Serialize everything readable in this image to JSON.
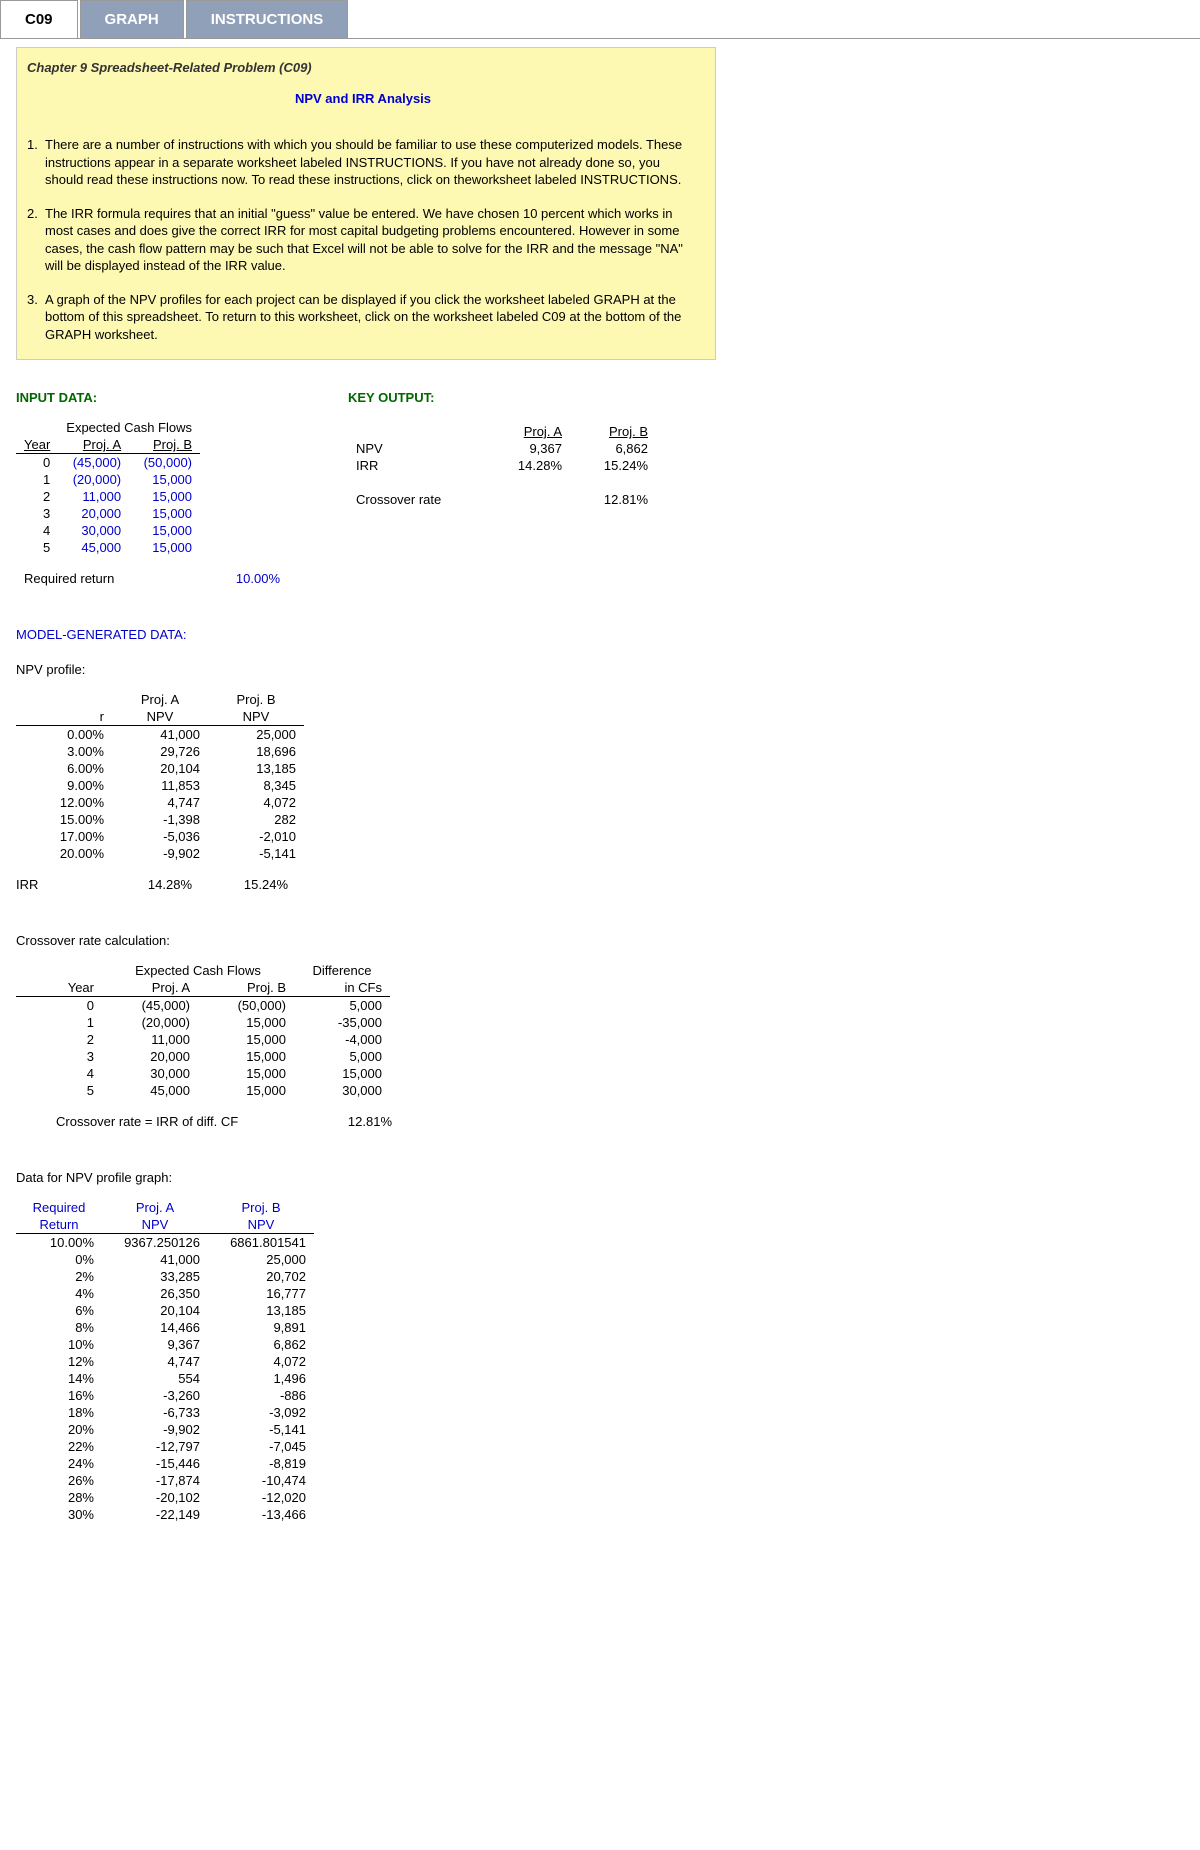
{
  "tabs": {
    "t1": "C09",
    "t2": "GRAPH",
    "t3": "INSTRUCTIONS"
  },
  "yellow": {
    "chapter": "Chapter 9 Spreadsheet-Related Problem  (C09)",
    "subtitle": "NPV and IRR Analysis",
    "instr1": "There are a number of instructions with which you should be familiar to use these computerized models.  These instructions appear in a separate worksheet labeled INSTRUCTIONS. If you have not already done so, you should read these instructions now. To read these instructions, click on theworksheet labeled INSTRUCTIONS.",
    "instr2": "The IRR formula requires that an initial \"guess\" value be entered. We have chosen 10 percent which works in most cases and does give the correct IRR for most capital budgeting problems encountered. However in some cases, the cash flow pattern may be such that Excel will not be able to solve for the IRR and the message \"NA\" will be displayed instead of the IRR value.",
    "instr3": "A graph of the NPV profiles for each project can be displayed if you click the worksheet labeled GRAPH at the bottom of this spreadsheet. To return to this worksheet, click on the worksheet labeled C09 at the bottom of the GRAPH worksheet."
  },
  "labels": {
    "input": "INPUT DATA:",
    "keyout": "KEY OUTPUT:",
    "ecf": "Expected Cash Flows",
    "year": "Year",
    "projA": "Proj. A",
    "projB": "Proj. B",
    "reqret": "Required return",
    "reqret_val": "10.00%",
    "npv": "NPV",
    "irr": "IRR",
    "crossover": "Crossover rate",
    "modelgen": "MODEL-GENERATED DATA:",
    "npvprofile": "NPV profile:",
    "r": "r",
    "projANPV_l1": "Proj. A",
    "projANPV_l2": "NPV",
    "projBNPV_l1": "Proj. B",
    "projBNPV_l2": "NPV",
    "crosscalc": "Crossover rate calculation:",
    "diff_l1": "Difference",
    "diff_l2": "in CFs",
    "crossirr": "Crossover rate = IRR of diff. CF",
    "datagraph": "Data for NPV profile graph:",
    "reqret2_l1": "Required",
    "reqret2_l2": "Return"
  },
  "keyout": {
    "npv_a": "9,367",
    "npv_b": "6,862",
    "irr_a": "14.28%",
    "irr_b": "15.24%",
    "cross_b": "12.81%"
  },
  "cf": [
    {
      "y": "0",
      "a": "(45,000)",
      "b": "(50,000)"
    },
    {
      "y": "1",
      "a": "(20,000)",
      "b": "15,000"
    },
    {
      "y": "2",
      "a": "11,000",
      "b": "15,000"
    },
    {
      "y": "3",
      "a": "20,000",
      "b": "15,000"
    },
    {
      "y": "4",
      "a": "30,000",
      "b": "15,000"
    },
    {
      "y": "5",
      "a": "45,000",
      "b": "15,000"
    }
  ],
  "npvp": [
    {
      "r": "0.00%",
      "a": "41,000",
      "b": "25,000"
    },
    {
      "r": "3.00%",
      "a": "29,726",
      "b": "18,696"
    },
    {
      "r": "6.00%",
      "a": "20,104",
      "b": "13,185"
    },
    {
      "r": "9.00%",
      "a": "11,853",
      "b": "8,345"
    },
    {
      "r": "12.00%",
      "a": "4,747",
      "b": "4,072"
    },
    {
      "r": "15.00%",
      "a": "-1,398",
      "b": "282"
    },
    {
      "r": "17.00%",
      "a": "-5,036",
      "b": "-2,010"
    },
    {
      "r": "20.00%",
      "a": "-9,902",
      "b": "-5,141"
    }
  ],
  "irr_row": {
    "label": "IRR",
    "a": "14.28%",
    "b": "15.24%"
  },
  "cross": [
    {
      "y": "0",
      "a": "(45,000)",
      "b": "(50,000)",
      "d": "5,000"
    },
    {
      "y": "1",
      "a": "(20,000)",
      "b": "15,000",
      "d": "-35,000"
    },
    {
      "y": "2",
      "a": "11,000",
      "b": "15,000",
      "d": "-4,000"
    },
    {
      "y": "3",
      "a": "20,000",
      "b": "15,000",
      "d": "5,000"
    },
    {
      "y": "4",
      "a": "30,000",
      "b": "15,000",
      "d": "15,000"
    },
    {
      "y": "5",
      "a": "45,000",
      "b": "15,000",
      "d": "30,000"
    }
  ],
  "cross_val": "12.81%",
  "graph": [
    {
      "r": "10.00%",
      "a": "9367.250126",
      "b": "6861.801541"
    },
    {
      "r": "0%",
      "a": "41,000",
      "b": "25,000"
    },
    {
      "r": "2%",
      "a": "33,285",
      "b": "20,702"
    },
    {
      "r": "4%",
      "a": "26,350",
      "b": "16,777"
    },
    {
      "r": "6%",
      "a": "20,104",
      "b": "13,185"
    },
    {
      "r": "8%",
      "a": "14,466",
      "b": "9,891"
    },
    {
      "r": "10%",
      "a": "9,367",
      "b": "6,862"
    },
    {
      "r": "12%",
      "a": "4,747",
      "b": "4,072"
    },
    {
      "r": "14%",
      "a": "554",
      "b": "1,496"
    },
    {
      "r": "16%",
      "a": "-3,260",
      "b": "-886"
    },
    {
      "r": "18%",
      "a": "-6,733",
      "b": "-3,092"
    },
    {
      "r": "20%",
      "a": "-9,902",
      "b": "-5,141"
    },
    {
      "r": "22%",
      "a": "-12,797",
      "b": "-7,045"
    },
    {
      "r": "24%",
      "a": "-15,446",
      "b": "-8,819"
    },
    {
      "r": "26%",
      "a": "-17,874",
      "b": "-10,474"
    },
    {
      "r": "28%",
      "a": "-20,102",
      "b": "-12,020"
    },
    {
      "r": "30%",
      "a": "-22,149",
      "b": "-13,466"
    }
  ]
}
